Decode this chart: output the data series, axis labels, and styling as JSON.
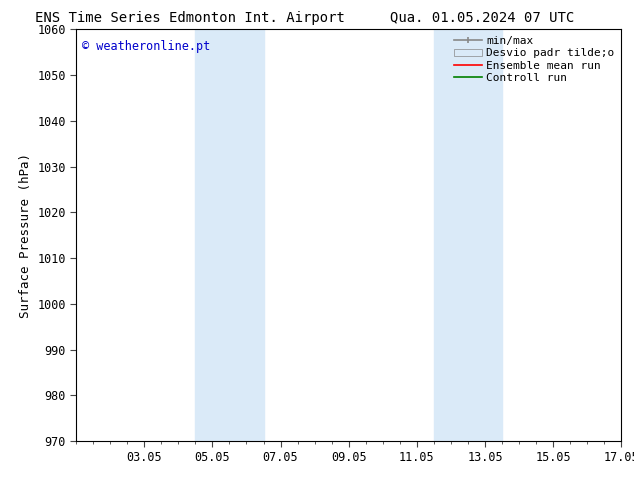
{
  "title_left": "ENS Time Series Edmonton Int. Airport",
  "title_right": "Qua. 01.05.2024 07 UTC",
  "ylabel": "Surface Pressure (hPa)",
  "ylim": [
    970,
    1060
  ],
  "yticks": [
    970,
    980,
    990,
    1000,
    1010,
    1020,
    1030,
    1040,
    1050,
    1060
  ],
  "xlim": [
    0,
    16
  ],
  "xtick_labels": [
    "03.05",
    "05.05",
    "07.05",
    "09.05",
    "11.05",
    "13.05",
    "15.05",
    "17.05"
  ],
  "xtick_positions": [
    2,
    4,
    6,
    8,
    10,
    12,
    14,
    16
  ],
  "watermark": "© weatheronline.pt",
  "watermark_color": "#0000cc",
  "bg_color": "#ffffff",
  "shaded_bands": [
    {
      "x_start": 3.5,
      "x_end": 5.5,
      "color": "#daeaf8"
    },
    {
      "x_start": 10.5,
      "x_end": 12.5,
      "color": "#daeaf8"
    }
  ],
  "legend_labels": [
    "min/max",
    "Desvio padr tilde;o",
    "Ensemble mean run",
    "Controll run"
  ],
  "legend_line_color": "#888888",
  "legend_band_color": "#daeaf8",
  "legend_mean_color": "#ff0000",
  "legend_ctrl_color": "#008000",
  "title_fontsize": 10,
  "axis_label_fontsize": 9,
  "tick_fontsize": 8.5,
  "legend_fontsize": 8,
  "font_family": "DejaVu Sans Mono"
}
